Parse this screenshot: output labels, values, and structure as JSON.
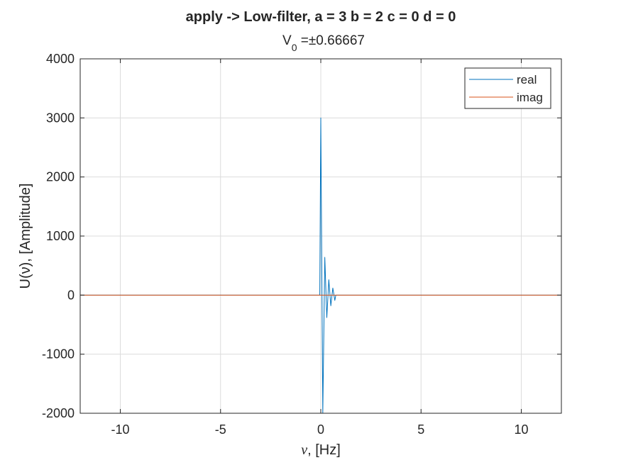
{
  "chart_data": {
    "type": "line",
    "title": "apply -> Low-filter, a = 3 b = 2 c = 0 d = 0",
    "subtitle": {
      "prefix": "V",
      "subscript": "0",
      "suffix": " =±0.66667"
    },
    "xlabel": {
      "symbol": "ν",
      "text": ", [Hz]"
    },
    "ylabel": "U(ν), [Amplitude]",
    "xlim": [
      -12,
      12
    ],
    "ylim": [
      -2000,
      4000
    ],
    "xticks": [
      -10,
      -5,
      0,
      5,
      10
    ],
    "yticks": [
      -2000,
      -1000,
      0,
      1000,
      2000,
      3000,
      4000
    ],
    "grid": true,
    "legend_position": "top-right",
    "series": [
      {
        "name": "real",
        "color": "#0072BD",
        "x": [
          -12,
          -0.05,
          0,
          0.1,
          0.2,
          0.3,
          0.4,
          0.5,
          0.6,
          0.7,
          0.75,
          12
        ],
        "y": [
          0,
          0,
          3000,
          -2000,
          640,
          -380,
          260,
          -180,
          120,
          -90,
          0,
          0
        ]
      },
      {
        "name": "imag",
        "color": "#D95319",
        "x": [
          -12,
          12
        ],
        "y": [
          0,
          0
        ]
      }
    ]
  }
}
